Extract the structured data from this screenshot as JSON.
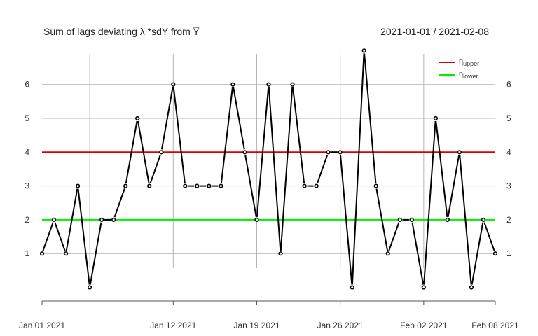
{
  "chart_data": {
    "type": "line",
    "title": "Sum of lags deviating λ *sdY from Y̅",
    "date_range": "2021-01-01 / 2021-02-08",
    "xlabel": "",
    "ylabel": "",
    "x_start": "2021-01-01",
    "x_end": "2021-02-08",
    "ylim": [
      0,
      7
    ],
    "y_ticks": [
      1,
      2,
      3,
      4,
      5,
      6
    ],
    "x_ticks": [
      {
        "date": "2021-01-01",
        "label": "Jan 01 2021"
      },
      {
        "date": "2021-01-12",
        "label": "Jan 12 2021"
      },
      {
        "date": "2021-01-19",
        "label": "Jan 19 2021"
      },
      {
        "date": "2021-01-26",
        "label": "Jan 26 2021"
      },
      {
        "date": "2021-02-02",
        "label": "Feb 02 2021"
      },
      {
        "date": "2021-02-08",
        "label": "Feb 08 2021"
      }
    ],
    "x_gridlines": [
      "2021-01-05",
      "2021-01-12",
      "2021-01-19",
      "2021-01-26",
      "2021-02-02"
    ],
    "grid": true,
    "series": [
      {
        "color": "#000000",
        "values": [
          {
            "x": "2021-01-01",
            "y": 1
          },
          {
            "x": "2021-01-02",
            "y": 2
          },
          {
            "x": "2021-01-03",
            "y": 1
          },
          {
            "x": "2021-01-04",
            "y": 3
          },
          {
            "x": "2021-01-05",
            "y": 0
          },
          {
            "x": "2021-01-06",
            "y": 2
          },
          {
            "x": "2021-01-07",
            "y": 2
          },
          {
            "x": "2021-01-08",
            "y": 3
          },
          {
            "x": "2021-01-09",
            "y": 5
          },
          {
            "x": "2021-01-10",
            "y": 3
          },
          {
            "x": "2021-01-11",
            "y": 4
          },
          {
            "x": "2021-01-12",
            "y": 6
          },
          {
            "x": "2021-01-13",
            "y": 3
          },
          {
            "x": "2021-01-14",
            "y": 3
          },
          {
            "x": "2021-01-15",
            "y": 3
          },
          {
            "x": "2021-01-16",
            "y": 3
          },
          {
            "x": "2021-01-17",
            "y": 6
          },
          {
            "x": "2021-01-18",
            "y": 4
          },
          {
            "x": "2021-01-19",
            "y": 2
          },
          {
            "x": "2021-01-20",
            "y": 6
          },
          {
            "x": "2021-01-21",
            "y": 1
          },
          {
            "x": "2021-01-22",
            "y": 6
          },
          {
            "x": "2021-01-23",
            "y": 3
          },
          {
            "x": "2021-01-24",
            "y": 3
          },
          {
            "x": "2021-01-25",
            "y": 4
          },
          {
            "x": "2021-01-26",
            "y": 4
          },
          {
            "x": "2021-01-27",
            "y": 0
          },
          {
            "x": "2021-01-28",
            "y": 7
          },
          {
            "x": "2021-01-29",
            "y": 3
          },
          {
            "x": "2021-01-30",
            "y": 1
          },
          {
            "x": "2021-01-31",
            "y": 2
          },
          {
            "x": "2021-02-01",
            "y": 2
          },
          {
            "x": "2021-02-02",
            "y": 0
          },
          {
            "x": "2021-02-03",
            "y": 5
          },
          {
            "x": "2021-02-04",
            "y": 2
          },
          {
            "x": "2021-02-05",
            "y": 4
          },
          {
            "x": "2021-02-06",
            "y": 0
          },
          {
            "x": "2021-02-07",
            "y": 2
          },
          {
            "x": "2021-02-08",
            "y": 1
          }
        ]
      }
    ],
    "horizontal_lines": [
      {
        "y": 4,
        "color": "#dd0000"
      },
      {
        "y": 2,
        "color": "#00ee00"
      }
    ],
    "legend": {
      "position": "top-right",
      "entries": [
        {
          "symbol": "η",
          "subscript": "upper",
          "color": "#dd0000"
        },
        {
          "symbol": "η",
          "subscript": "lower",
          "color": "#00ee00"
        }
      ]
    },
    "colors": {
      "grid": "#b4b4b4",
      "axis": "#555555",
      "line": "#000000"
    }
  }
}
